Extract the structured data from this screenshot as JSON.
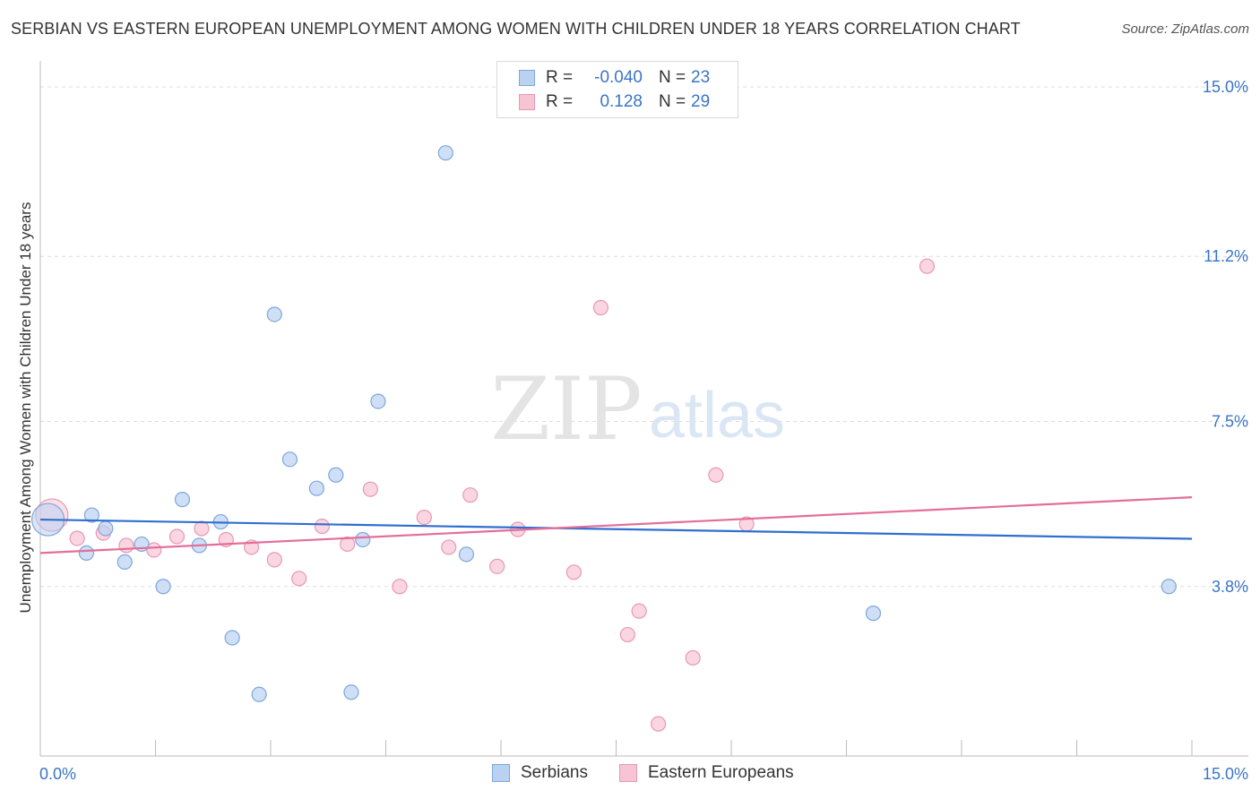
{
  "title": "SERBIAN VS EASTERN EUROPEAN UNEMPLOYMENT AMONG WOMEN WITH CHILDREN UNDER 18 YEARS CORRELATION CHART",
  "source": "Source: ZipAtlas.com",
  "watermark": {
    "zip": "ZIP",
    "atlas": "atlas"
  },
  "legend": {
    "serbians": {
      "r_label": "R =",
      "r_value": "-0.040",
      "n_label": "N =",
      "n_value": "23"
    },
    "eastern": {
      "r_label": "R =",
      "r_value": "0.128",
      "n_label": "N =",
      "n_value": "29"
    }
  },
  "bottom_legend": {
    "serbians": "Serbians",
    "eastern": "Eastern Europeans"
  },
  "colors": {
    "serbian_fill": "#b9d2f2",
    "serbian_stroke": "#7fa6dc",
    "serbian_line": "#2f6fcf",
    "eastern_fill": "#f7c4d4",
    "eastern_stroke": "#e998b2",
    "eastern_line": "#e46e99",
    "tick_label": "#3a74c8",
    "grid": "#dddddd"
  },
  "chart_data": {
    "type": "scatter",
    "title": "SERBIAN VS EASTERN EUROPEAN UNEMPLOYMENT AMONG WOMEN WITH CHILDREN UNDER 18 YEARS CORRELATION CHART",
    "xlabel": "",
    "ylabel": "Unemployment Among Women with Children Under 18 years",
    "xlim": [
      0,
      15
    ],
    "ylim": [
      0,
      15.4
    ],
    "x_tick_labels": [
      "0.0%",
      "15.0%"
    ],
    "y_ticks": [
      3.8,
      7.5,
      11.2,
      15.0
    ],
    "y_tick_labels": [
      "3.8%",
      "7.5%",
      "11.2%",
      "15.0%"
    ],
    "series": [
      {
        "name": "Serbians",
        "r": -0.04,
        "n": 23,
        "trend": {
          "x": [
            0,
            15
          ],
          "y": [
            5.3,
            4.87
          ]
        },
        "points": [
          {
            "x": 0.1,
            "y": 5.3,
            "big": true
          },
          {
            "x": 0.67,
            "y": 5.4
          },
          {
            "x": 0.85,
            "y": 5.1
          },
          {
            "x": 0.6,
            "y": 4.55
          },
          {
            "x": 1.1,
            "y": 4.35
          },
          {
            "x": 1.32,
            "y": 4.75
          },
          {
            "x": 1.6,
            "y": 3.8
          },
          {
            "x": 1.85,
            "y": 5.75
          },
          {
            "x": 2.07,
            "y": 4.72
          },
          {
            "x": 2.35,
            "y": 5.25
          },
          {
            "x": 2.5,
            "y": 2.65
          },
          {
            "x": 2.85,
            "y": 1.38
          },
          {
            "x": 3.05,
            "y": 9.9
          },
          {
            "x": 3.25,
            "y": 6.65
          },
          {
            "x": 3.6,
            "y": 6.0
          },
          {
            "x": 3.85,
            "y": 6.3
          },
          {
            "x": 4.05,
            "y": 1.43
          },
          {
            "x": 4.2,
            "y": 4.85
          },
          {
            "x": 4.4,
            "y": 7.95
          },
          {
            "x": 5.28,
            "y": 13.52
          },
          {
            "x": 5.55,
            "y": 4.52
          },
          {
            "x": 10.85,
            "y": 3.2
          },
          {
            "x": 14.7,
            "y": 3.8
          }
        ]
      },
      {
        "name": "Eastern Europeans",
        "r": 0.128,
        "n": 29,
        "trend": {
          "x": [
            0,
            15
          ],
          "y": [
            4.55,
            5.8
          ]
        },
        "points": [
          {
            "x": 0.15,
            "y": 5.4,
            "big": true
          },
          {
            "x": 0.48,
            "y": 4.88
          },
          {
            "x": 0.82,
            "y": 5.0
          },
          {
            "x": 1.12,
            "y": 4.72
          },
          {
            "x": 1.48,
            "y": 4.62
          },
          {
            "x": 1.78,
            "y": 4.92
          },
          {
            "x": 2.1,
            "y": 5.1
          },
          {
            "x": 2.42,
            "y": 4.85
          },
          {
            "x": 2.75,
            "y": 4.68
          },
          {
            "x": 3.05,
            "y": 4.4
          },
          {
            "x": 3.37,
            "y": 3.98
          },
          {
            "x": 3.67,
            "y": 5.15
          },
          {
            "x": 4.0,
            "y": 4.75
          },
          {
            "x": 4.3,
            "y": 5.98
          },
          {
            "x": 4.68,
            "y": 3.8
          },
          {
            "x": 5.0,
            "y": 5.35
          },
          {
            "x": 5.32,
            "y": 4.68
          },
          {
            "x": 5.6,
            "y": 5.85
          },
          {
            "x": 5.95,
            "y": 4.25
          },
          {
            "x": 6.22,
            "y": 5.08
          },
          {
            "x": 6.95,
            "y": 4.12
          },
          {
            "x": 7.3,
            "y": 10.05
          },
          {
            "x": 7.65,
            "y": 2.72
          },
          {
            "x": 7.8,
            "y": 3.25
          },
          {
            "x": 8.5,
            "y": 2.2
          },
          {
            "x": 8.8,
            "y": 6.3
          },
          {
            "x": 9.2,
            "y": 5.2
          },
          {
            "x": 11.55,
            "y": 10.98
          },
          {
            "x": 8.05,
            "y": 0.72
          }
        ]
      }
    ]
  }
}
